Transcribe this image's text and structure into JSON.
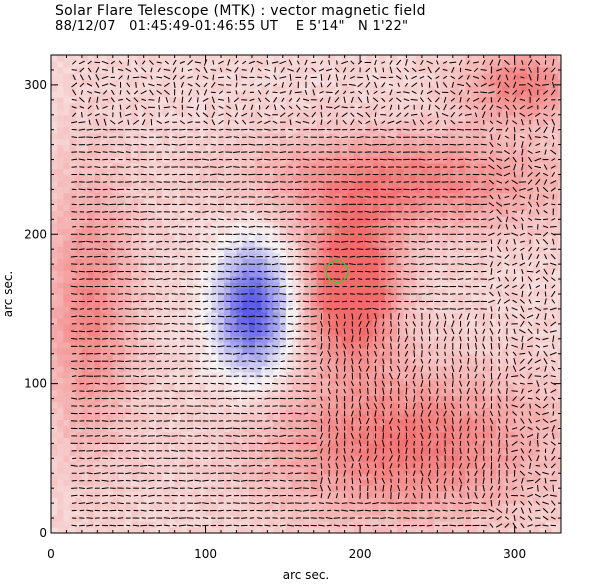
{
  "header": {
    "title": "Solar Flare Telescope (MTK) : vector magnetic field",
    "subtitle_date": "88/12/07",
    "subtitle_time": "01:45:49-01:46:55 UT",
    "subtitle_position": "E 5'14\"   N 1'22\""
  },
  "chart_data": {
    "type": "heatmap",
    "title": "Solar Flare Telescope (MTK) : vector magnetic field",
    "xlabel": "arc sec.",
    "ylabel": "arc sec.",
    "xlim": [
      0,
      330
    ],
    "ylim": [
      0,
      320
    ],
    "x_ticks": [
      0,
      100,
      200,
      300
    ],
    "y_ticks": [
      0,
      100,
      200,
      300
    ],
    "x_tick_labels": [
      "0",
      "100",
      "200",
      "300"
    ],
    "y_tick_labels": [
      "0",
      "100",
      "200",
      "300"
    ],
    "colors": {
      "positive_polarity": "#f26b6b",
      "negative_polarity": "#5a5ae6",
      "background": "#f2e4e4",
      "vectors": "#000000",
      "flare_contour": "#33cc33"
    },
    "regions": [
      {
        "name": "negative-polarity-core",
        "polarity": "negative",
        "center": [
          130,
          150
        ],
        "radius": [
          30,
          55
        ],
        "strength": -1.0
      },
      {
        "name": "positive-polarity-main",
        "polarity": "positive",
        "center": [
          195,
          165
        ],
        "radius": [
          35,
          60
        ],
        "strength": 0.9
      },
      {
        "name": "positive-upper-band",
        "polarity": "positive",
        "center": [
          230,
          235
        ],
        "radius": [
          120,
          40
        ],
        "strength": 0.5
      },
      {
        "name": "positive-lower-region",
        "polarity": "positive",
        "center": [
          230,
          60
        ],
        "radius": [
          110,
          60
        ],
        "strength": 0.55
      },
      {
        "name": "positive-left-edge",
        "polarity": "positive",
        "center": [
          25,
          150
        ],
        "radius": [
          35,
          110
        ],
        "strength": 0.45
      },
      {
        "name": "positive-top-right",
        "polarity": "positive",
        "center": [
          305,
          300
        ],
        "radius": [
          45,
          30
        ],
        "strength": 0.5
      }
    ],
    "flare_marker": {
      "center": [
        185,
        175
      ],
      "radius": 7
    },
    "vector_grid_spacing": 5
  }
}
